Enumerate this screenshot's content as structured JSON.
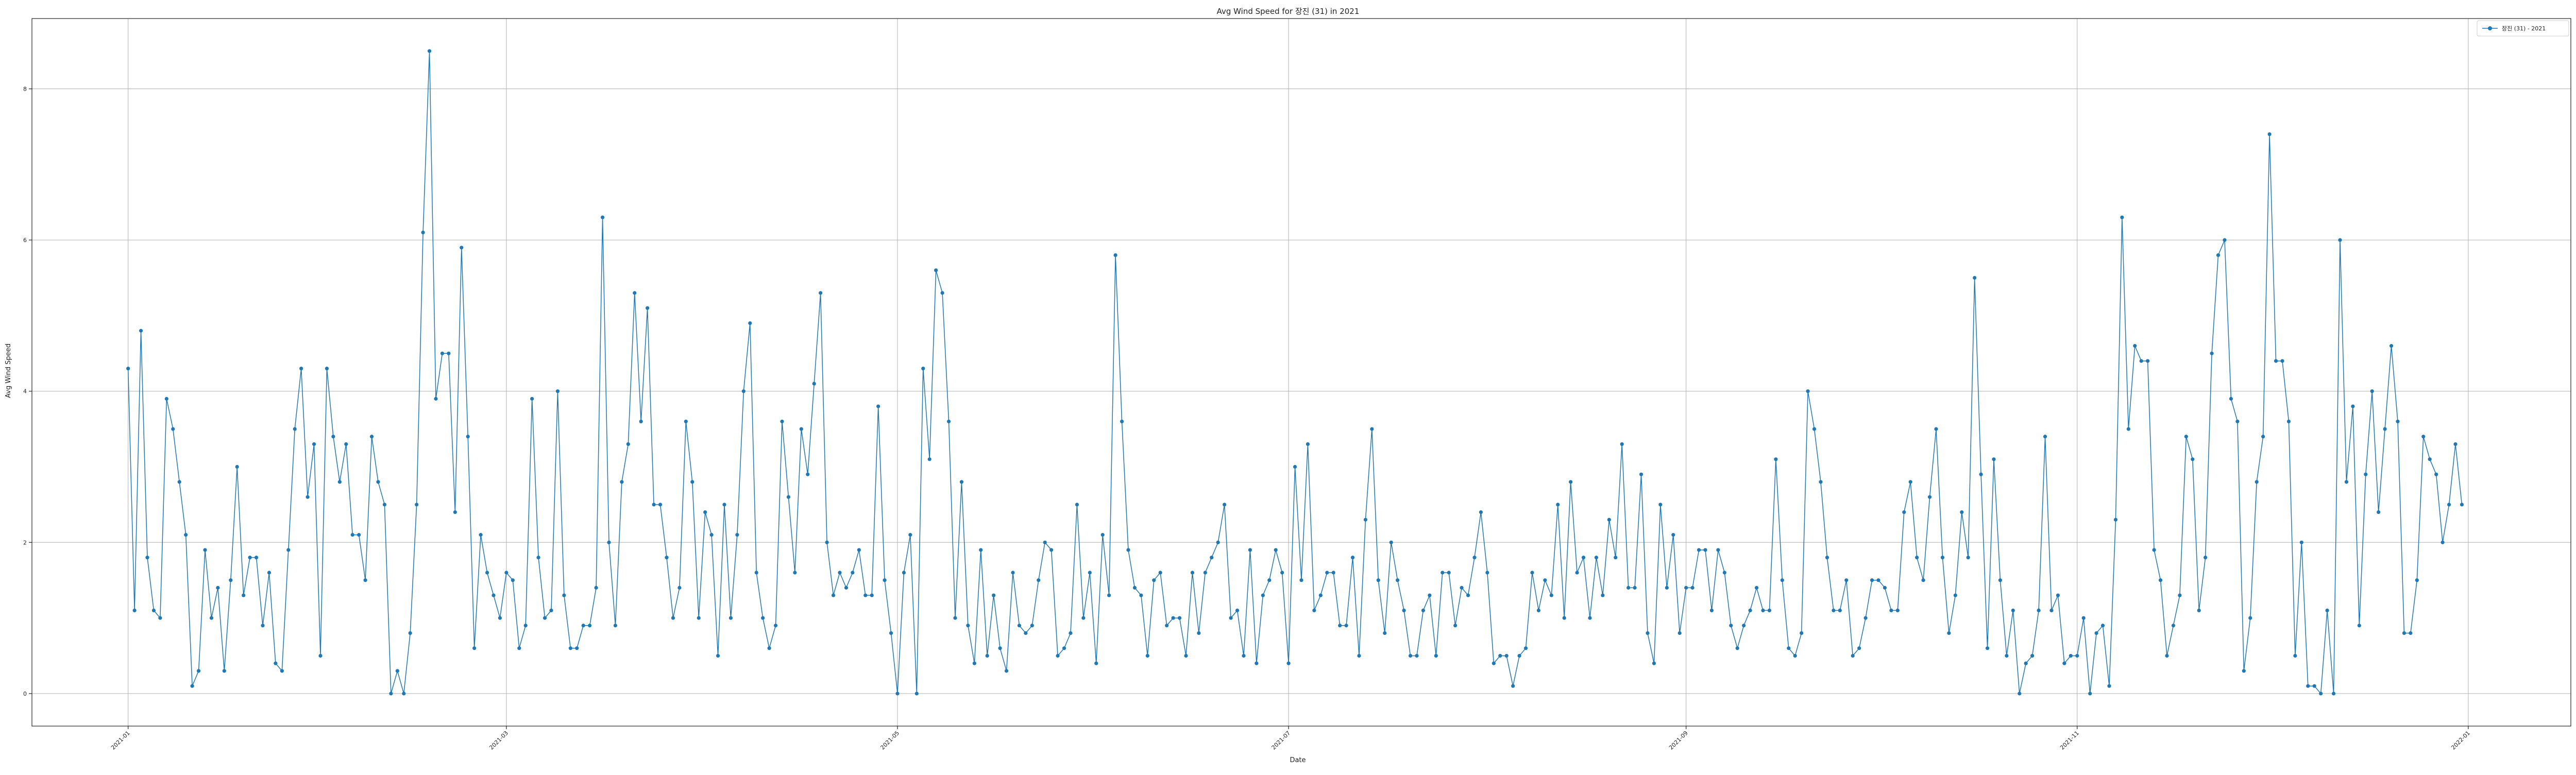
{
  "chart_data": {
    "type": "line",
    "title": "Avg Wind Speed for 장진 (31) in 2021",
    "xlabel": "Date",
    "ylabel": "Avg Wind Speed",
    "x_start": "2021-01-01",
    "x_end": "2021-12-31",
    "xlim": [
      "2020-12-17",
      "2022-01-17"
    ],
    "ylim": [
      -0.43,
      8.93
    ],
    "y_ticks": [
      0,
      2,
      4,
      6,
      8
    ],
    "x_ticks": [
      {
        "date": "2021-01-01",
        "label": "2021-01"
      },
      {
        "date": "2021-03-01",
        "label": "2021-03"
      },
      {
        "date": "2021-05-01",
        "label": "2021-05"
      },
      {
        "date": "2021-07-01",
        "label": "2021-07"
      },
      {
        "date": "2021-09-01",
        "label": "2021-09"
      },
      {
        "date": "2021-11-01",
        "label": "2021-11"
      },
      {
        "date": "2022-01-01",
        "label": "2022-01"
      }
    ],
    "grid": true,
    "legend_position": "top-right",
    "series": [
      {
        "name": "장진 (31) - 2021",
        "color": "#1f77b4",
        "marker": "circle",
        "values": [
          4.3,
          1.1,
          4.8,
          1.8,
          1.1,
          1.0,
          3.9,
          3.5,
          2.8,
          2.1,
          0.1,
          0.3,
          1.9,
          1.0,
          1.4,
          0.3,
          1.5,
          3.0,
          1.3,
          1.8,
          1.8,
          0.9,
          1.6,
          0.4,
          0.3,
          1.9,
          3.5,
          4.3,
          2.6,
          3.3,
          0.5,
          4.3,
          3.4,
          2.8,
          3.3,
          2.1,
          2.1,
          1.5,
          3.4,
          2.8,
          2.5,
          0.0,
          0.3,
          0.0,
          0.8,
          2.5,
          6.1,
          8.5,
          3.9,
          4.5,
          4.5,
          2.4,
          5.9,
          3.4,
          0.6,
          2.1,
          1.6,
          1.3,
          1.0,
          1.6,
          1.5,
          0.6,
          0.9,
          3.9,
          1.8,
          1.0,
          1.1,
          4.0,
          1.3,
          0.6,
          0.6,
          0.9,
          0.9,
          1.4,
          6.3,
          2.0,
          0.9,
          2.8,
          3.3,
          5.3,
          3.6,
          5.1,
          2.5,
          2.5,
          1.8,
          1.0,
          1.4,
          3.6,
          2.8,
          1.0,
          2.4,
          2.1,
          0.5,
          2.5,
          1.0,
          2.1,
          4.0,
          4.9,
          1.6,
          1.0,
          0.6,
          0.9,
          3.6,
          2.6,
          1.6,
          3.5,
          2.9,
          4.1,
          5.3,
          2.0,
          1.3,
          1.6,
          1.4,
          1.6,
          1.9,
          1.3,
          1.3,
          3.8,
          1.5,
          0.8,
          0.0,
          1.6,
          2.1,
          0.0,
          4.3,
          3.1,
          5.6,
          5.3,
          3.6,
          1.0,
          2.8,
          0.9,
          0.4,
          1.9,
          0.5,
          1.3,
          0.6,
          0.3,
          1.6,
          0.9,
          0.8,
          0.9,
          1.5,
          2.0,
          1.9,
          0.5,
          0.6,
          0.8,
          2.5,
          1.0,
          1.6,
          0.4,
          2.1,
          1.3,
          5.8,
          3.6,
          1.9,
          1.4,
          1.3,
          0.5,
          1.5,
          1.6,
          0.9,
          1.0,
          1.0,
          0.5,
          1.6,
          0.8,
          1.6,
          1.8,
          2.0,
          2.5,
          1.0,
          1.1,
          0.5,
          1.9,
          0.4,
          1.3,
          1.5,
          1.9,
          1.6,
          0.4,
          3.0,
          1.5,
          3.3,
          1.1,
          1.3,
          1.6,
          1.6,
          0.9,
          0.9,
          1.8,
          0.5,
          2.3,
          3.5,
          1.5,
          0.8,
          2.0,
          1.5,
          1.1,
          0.5,
          0.5,
          1.1,
          1.3,
          0.5,
          1.6,
          1.6,
          0.9,
          1.4,
          1.3,
          1.8,
          2.4,
          1.6,
          0.4,
          0.5,
          0.5,
          0.1,
          0.5,
          0.6,
          1.6,
          1.1,
          1.5,
          1.3,
          2.5,
          1.0,
          2.8,
          1.6,
          1.8,
          1.0,
          1.8,
          1.3,
          2.3,
          1.8,
          3.3,
          1.4,
          1.4,
          2.9,
          0.8,
          0.4,
          2.5,
          1.4,
          2.1,
          0.8,
          1.4,
          1.4,
          1.9,
          1.9,
          1.1,
          1.9,
          1.6,
          0.9,
          0.6,
          0.9,
          1.1,
          1.4,
          1.1,
          1.1,
          3.1,
          1.5,
          0.6,
          0.5,
          0.8,
          4.0,
          3.5,
          2.8,
          1.8,
          1.1,
          1.1,
          1.5,
          0.5,
          0.6,
          1.0,
          1.5,
          1.5,
          1.4,
          1.1,
          1.1,
          2.4,
          2.8,
          1.8,
          1.5,
          2.6,
          3.5,
          1.8,
          0.8,
          1.3,
          2.4,
          1.8,
          5.5,
          2.9,
          0.6,
          3.1,
          1.5,
          0.5,
          1.1,
          0.0,
          0.4,
          0.5,
          1.1,
          3.4,
          1.1,
          1.3,
          0.4,
          0.5,
          0.5,
          1.0,
          0.0,
          0.8,
          0.9,
          0.1,
          2.3,
          6.3,
          3.5,
          4.6,
          4.4,
          4.4,
          1.9,
          1.5,
          0.5,
          0.9,
          1.3,
          3.4,
          3.1,
          1.1,
          1.8,
          4.5,
          5.8,
          6.0,
          3.9,
          3.6,
          0.3,
          1.0,
          2.8,
          3.4,
          7.4,
          4.4,
          4.4,
          3.6,
          0.5,
          2.0,
          0.1,
          0.1,
          0.0,
          1.1,
          0.0,
          6.0,
          2.8,
          3.8,
          0.9,
          2.9,
          4.0,
          2.4,
          3.5,
          4.6,
          3.6,
          0.8,
          0.8,
          1.5,
          3.4,
          3.1,
          2.9,
          2.0,
          2.5,
          3.3,
          2.5
        ]
      }
    ]
  }
}
